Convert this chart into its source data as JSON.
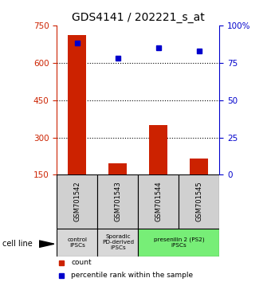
{
  "title": "GDS4141 / 202221_s_at",
  "samples": [
    "GSM701542",
    "GSM701543",
    "GSM701544",
    "GSM701545"
  ],
  "counts": [
    710,
    195,
    350,
    215
  ],
  "percentiles": [
    88,
    78,
    85,
    83
  ],
  "ylim_left": [
    150,
    750
  ],
  "ylim_right": [
    0,
    100
  ],
  "yticks_left": [
    150,
    300,
    450,
    600,
    750
  ],
  "yticks_right": [
    0,
    25,
    50,
    75,
    100
  ],
  "bar_color": "#cc2200",
  "dot_color": "#0000cc",
  "bar_width": 0.45,
  "groups": [
    {
      "label": "control\nIPSCs",
      "start": 0,
      "end": 1,
      "color": "#d8d8d8"
    },
    {
      "label": "Sporadic\nPD-derived\niPSCs",
      "start": 1,
      "end": 2,
      "color": "#d8d8d8"
    },
    {
      "label": "presenilin 2 (PS2)\niPSCs",
      "start": 2,
      "end": 4,
      "color": "#77ee77"
    }
  ],
  "cell_line_label": "cell line",
  "legend_count_label": "count",
  "legend_pct_label": "percentile rank within the sample",
  "title_fontsize": 10,
  "tick_fontsize": 7.5,
  "label_fontsize": 7
}
